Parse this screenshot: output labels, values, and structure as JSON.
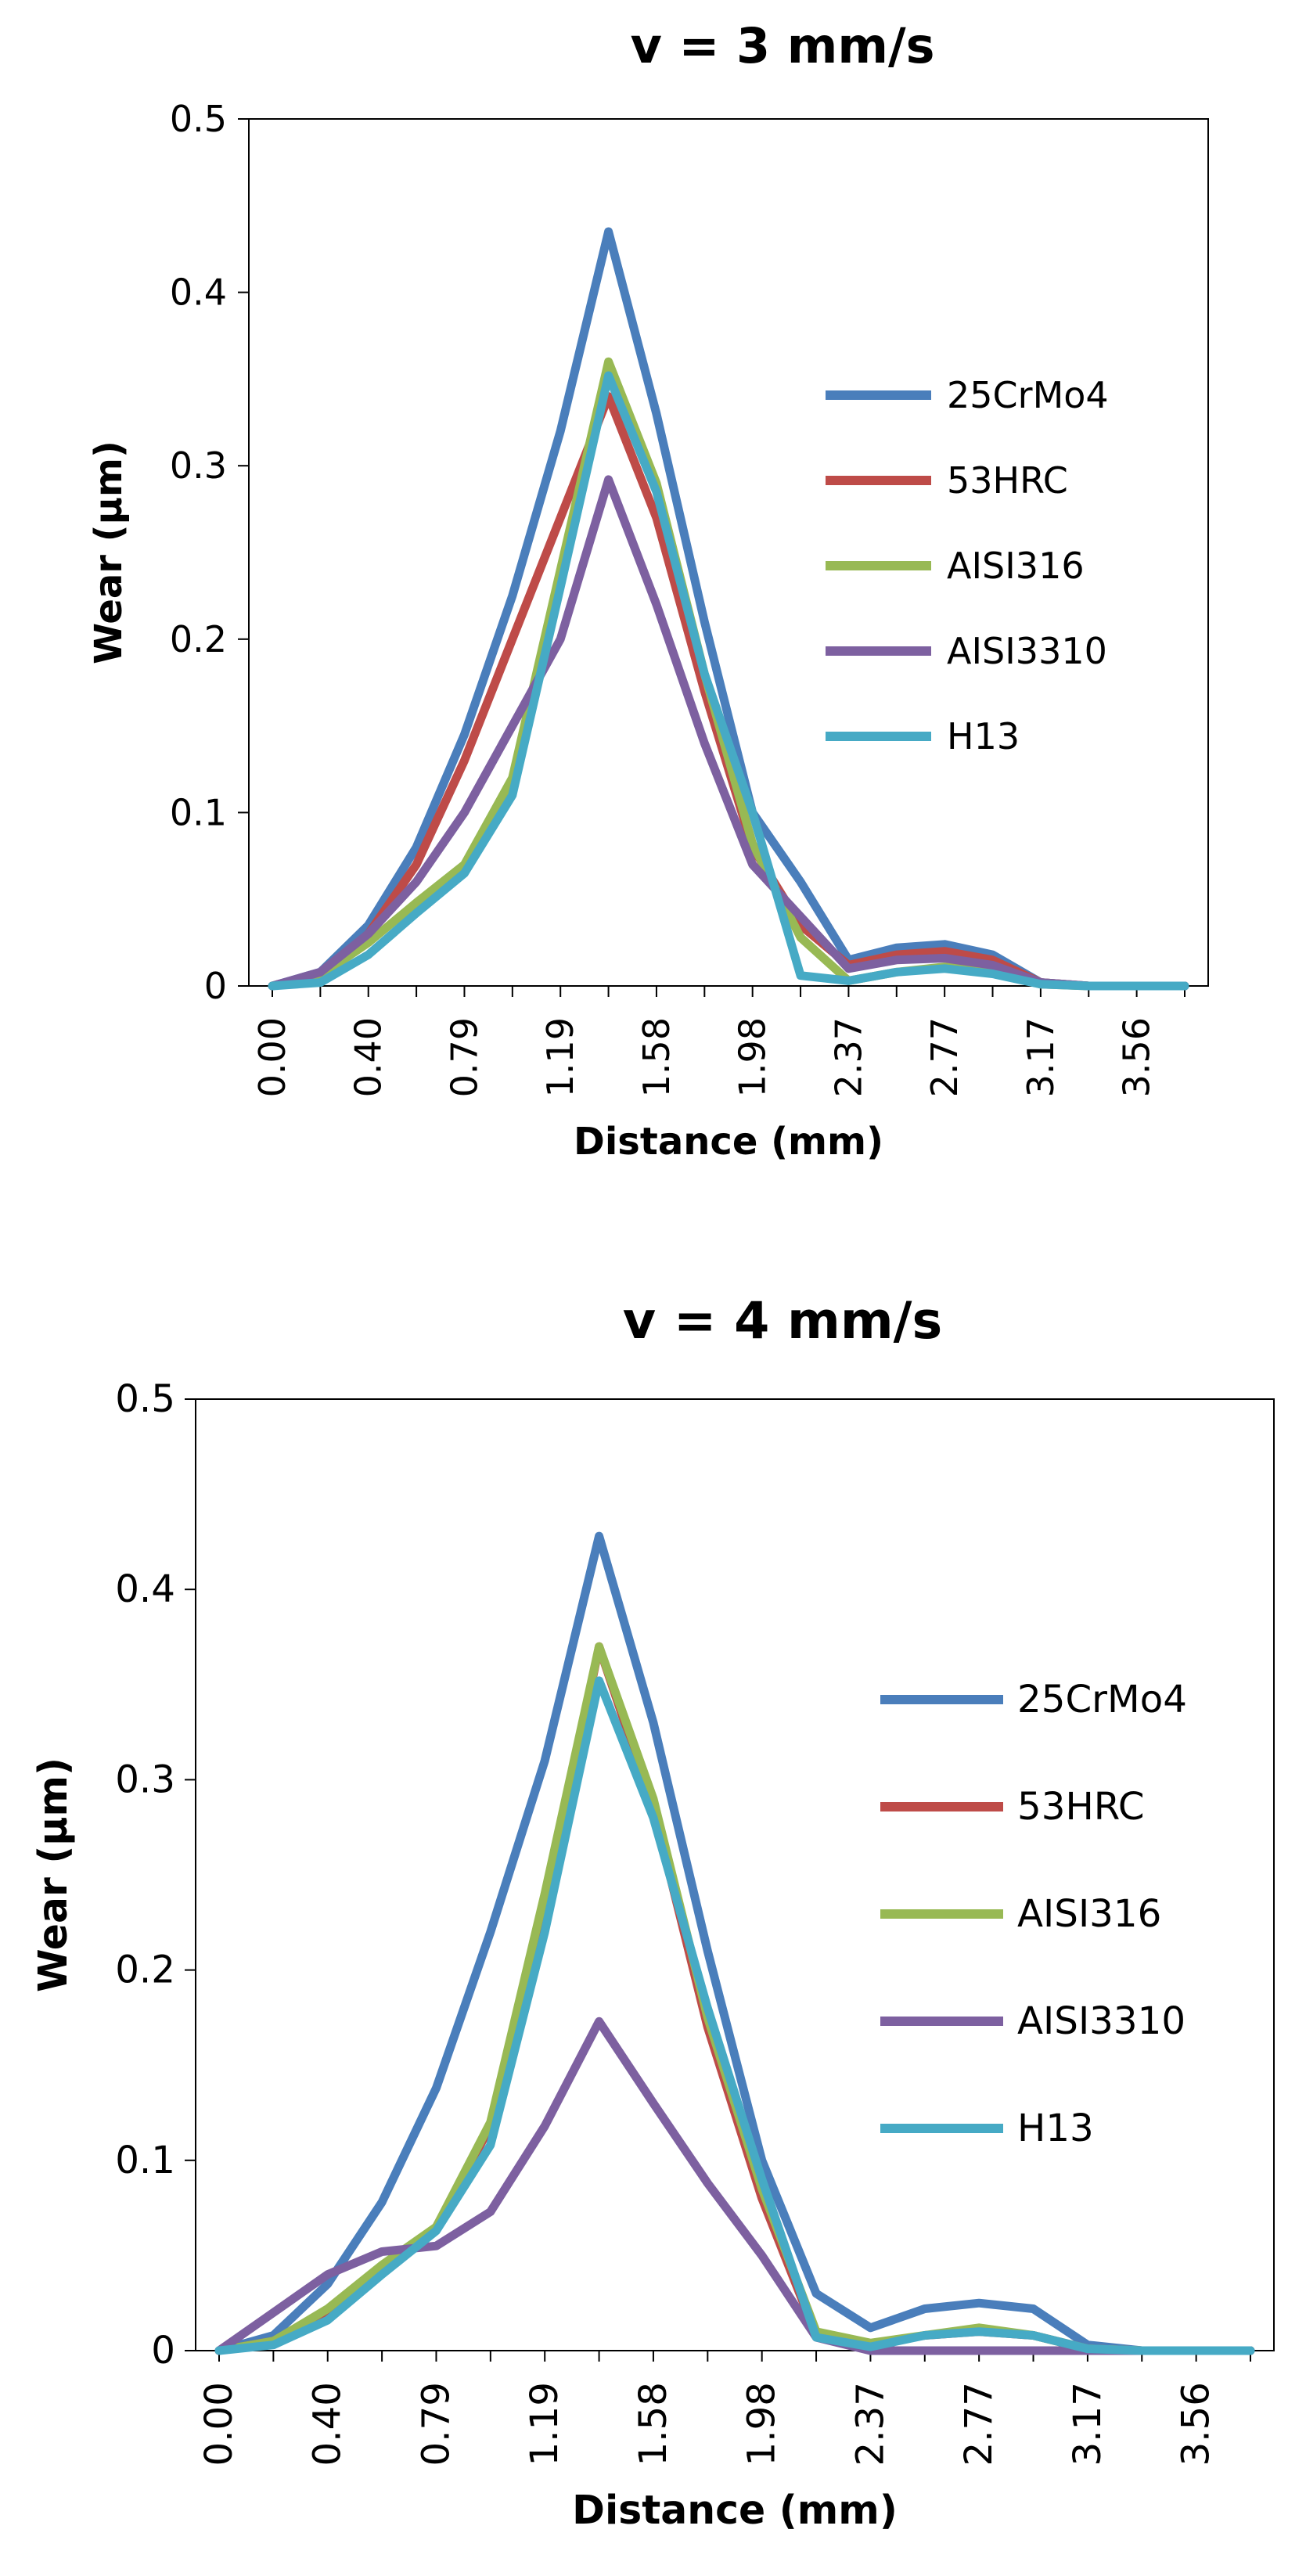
{
  "chart_data": [
    {
      "type": "line",
      "title": "v = 3 mm/s",
      "xlabel": "Distance (mm)",
      "ylabel": "Wear (µm)",
      "x": [
        0.0,
        0.2,
        0.4,
        0.59,
        0.79,
        0.99,
        1.19,
        1.38,
        1.58,
        1.78,
        1.98,
        2.17,
        2.37,
        2.57,
        2.77,
        2.96,
        3.17,
        3.36,
        3.56,
        3.76
      ],
      "x_tick_labels": [
        "0.00",
        "0.40",
        "0.79",
        "1.19",
        "1.58",
        "1.98",
        "2.37",
        "2.77",
        "3.17",
        "3.56"
      ],
      "x_tick_indices": [
        0,
        2,
        4,
        6,
        8,
        10,
        12,
        14,
        16,
        18
      ],
      "ylim": [
        0,
        0.5
      ],
      "y_ticks": [
        "0",
        "0.1",
        "0.2",
        "0.3",
        "0.4",
        "0.5"
      ],
      "legend_position": "right",
      "series": [
        {
          "name": "25CrMo4",
          "color": "#4a7ebb",
          "values": [
            0,
            0.008,
            0.035,
            0.08,
            0.145,
            0.225,
            0.32,
            0.435,
            0.33,
            0.21,
            0.1,
            0.06,
            0.015,
            0.022,
            0.024,
            0.018,
            0.002,
            0,
            0,
            0
          ]
        },
        {
          "name": "53HRC",
          "color": "#be4b48",
          "values": [
            0,
            0.007,
            0.03,
            0.07,
            0.13,
            0.2,
            0.27,
            0.34,
            0.27,
            0.17,
            0.08,
            0.035,
            0.012,
            0.018,
            0.02,
            0.015,
            0.002,
            0,
            0,
            0
          ]
        },
        {
          "name": "AISI316",
          "color": "#98b954",
          "values": [
            0,
            0.006,
            0.025,
            0.048,
            0.07,
            0.12,
            0.24,
            0.36,
            0.29,
            0.18,
            0.082,
            0.028,
            0.003,
            0.008,
            0.011,
            0.008,
            0.001,
            0,
            0,
            0
          ]
        },
        {
          "name": "AISI3310",
          "color": "#7d60a0",
          "values": [
            0,
            0.008,
            0.03,
            0.06,
            0.1,
            0.15,
            0.2,
            0.292,
            0.22,
            0.14,
            0.07,
            0.04,
            0.01,
            0.015,
            0.016,
            0.012,
            0.002,
            0,
            0,
            0
          ]
        },
        {
          "name": "H13",
          "color": "#46aac5",
          "values": [
            0,
            0.002,
            0.018,
            0.042,
            0.065,
            0.11,
            0.23,
            0.352,
            0.285,
            0.18,
            0.1,
            0.006,
            0.003,
            0.008,
            0.01,
            0.007,
            0.001,
            0,
            0,
            0
          ]
        }
      ]
    },
    {
      "type": "line",
      "title": "v = 4 mm/s",
      "xlabel": "Distance (mm)",
      "ylabel": "Wear (µm)",
      "x": [
        0.0,
        0.2,
        0.4,
        0.59,
        0.79,
        0.99,
        1.19,
        1.38,
        1.58,
        1.78,
        1.98,
        2.17,
        2.37,
        2.57,
        2.77,
        2.96,
        3.17,
        3.36,
        3.56,
        3.76
      ],
      "x_tick_labels": [
        "0.00",
        "0.40",
        "0.79",
        "1.19",
        "1.58",
        "1.98",
        "2.37",
        "2.77",
        "3.17",
        "3.56"
      ],
      "x_tick_indices": [
        0,
        2,
        4,
        6,
        8,
        10,
        12,
        14,
        16,
        18
      ],
      "ylim": [
        0,
        0.5
      ],
      "y_ticks": [
        "0",
        "0.1",
        "0.2",
        "0.3",
        "0.4",
        "0.5"
      ],
      "legend_position": "right",
      "series": [
        {
          "name": "25CrMo4",
          "color": "#4a7ebb",
          "values": [
            0,
            0.008,
            0.035,
            0.078,
            0.138,
            0.22,
            0.31,
            0.428,
            0.33,
            0.21,
            0.1,
            0.03,
            0.012,
            0.022,
            0.025,
            0.022,
            0.003,
            0,
            0,
            0
          ]
        },
        {
          "name": "53HRC",
          "color": "#be4b48",
          "values": [
            0,
            0.005,
            0.02,
            0.042,
            0.065,
            0.118,
            0.23,
            0.37,
            0.285,
            0.17,
            0.08,
            0.008,
            0.003,
            0.008,
            0.01,
            0.008,
            0.001,
            0,
            0,
            0
          ]
        },
        {
          "name": "AISI316",
          "color": "#98b954",
          "values": [
            0,
            0.005,
            0.022,
            0.045,
            0.065,
            0.12,
            0.24,
            0.37,
            0.29,
            0.175,
            0.085,
            0.01,
            0.004,
            0.008,
            0.012,
            0.008,
            0.001,
            0,
            0,
            0
          ]
        },
        {
          "name": "AISI3310",
          "color": "#7d60a0",
          "values": [
            0,
            0.02,
            0.04,
            0.052,
            0.055,
            0.073,
            0.118,
            0.173,
            0.13,
            0.088,
            0.05,
            0.007,
            0,
            0,
            0,
            0,
            0,
            0,
            0,
            0
          ]
        },
        {
          "name": "H13",
          "color": "#46aac5",
          "values": [
            0,
            0.003,
            0.016,
            0.04,
            0.063,
            0.108,
            0.22,
            0.352,
            0.28,
            0.18,
            0.09,
            0.007,
            0.002,
            0.008,
            0.01,
            0.008,
            0.001,
            0,
            0,
            0
          ]
        }
      ]
    }
  ]
}
